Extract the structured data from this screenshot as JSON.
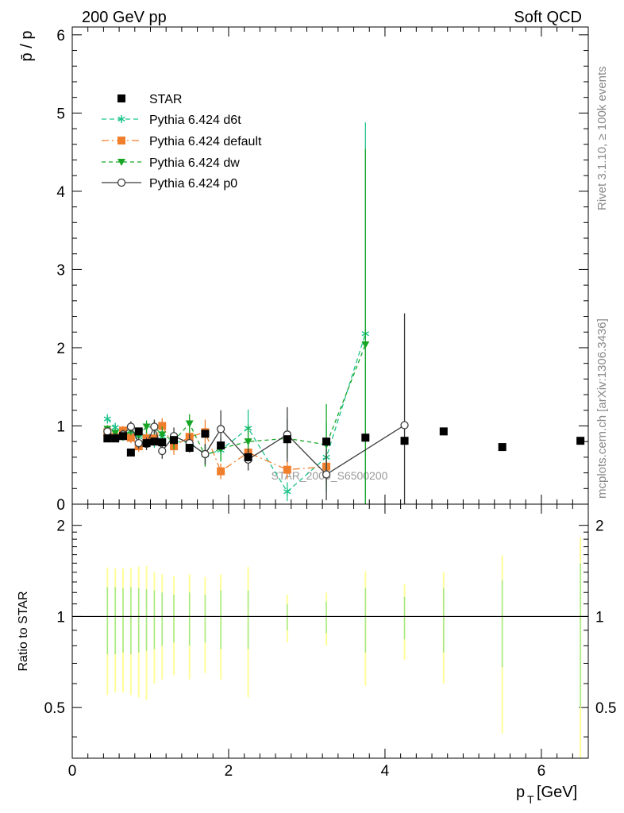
{
  "header": {
    "left": "200 GeV pp",
    "right": "Soft QCD"
  },
  "side_text": {
    "rivet": "Rivet 3.1.10, ≥ 100k events",
    "mcplots": "mcplots.cern.ch [arXiv:1306.3436]"
  },
  "watermark": "STAR_2006_S6500200",
  "chart_data": [
    {
      "type": "scatter",
      "panel": "main",
      "ylabel": "p̄ / p",
      "ylim": [
        0,
        6.1
      ],
      "xlim": [
        0,
        6.6
      ],
      "yticks": [
        0,
        1,
        2,
        3,
        4,
        5,
        6
      ],
      "tick_labels": [
        "0",
        "1",
        "2",
        "3",
        "4",
        "5",
        "6"
      ],
      "legend_position": "top-left",
      "series": [
        {
          "name": "STAR",
          "color": "#000000",
          "marker": "square",
          "x": [
            0.45,
            0.55,
            0.65,
            0.75,
            0.85,
            0.95,
            1.05,
            1.15,
            1.3,
            1.5,
            1.7,
            1.9,
            2.25,
            2.75,
            3.25,
            3.75,
            4.25,
            4.75,
            5.5,
            6.5
          ],
          "y": [
            0.84,
            0.84,
            0.87,
            0.66,
            0.93,
            0.78,
            0.8,
            0.79,
            0.82,
            0.72,
            0.9,
            0.75,
            0.6,
            0.83,
            0.8,
            0.85,
            0.81,
            0.93,
            0.73,
            0.81
          ]
        },
        {
          "name": "Pythia 6.424 d6t",
          "color": "#1ec38a",
          "marker": "star",
          "dash": "6,4",
          "x": [
            0.45,
            0.55,
            0.65,
            0.75,
            0.85,
            0.95,
            1.05,
            1.15,
            1.3,
            1.5,
            1.7,
            1.9,
            2.25,
            2.75,
            3.25,
            3.75
          ],
          "y": [
            1.09,
            0.98,
            0.91,
            0.9,
            0.86,
            0.87,
            0.8,
            0.86,
            0.8,
            0.79,
            0.63,
            0.69,
            0.97,
            0.16,
            0.6,
            2.18
          ],
          "err": [
            0.06,
            0.06,
            0.06,
            0.06,
            0.07,
            0.07,
            0.08,
            0.09,
            0.1,
            0.12,
            0.14,
            0.15,
            0.24,
            0.12,
            0.45,
            2.7
          ]
        },
        {
          "name": "Pythia 6.424 default",
          "color": "#f07f2d",
          "marker": "square",
          "dash": "9,4,2,4",
          "x": [
            0.45,
            0.55,
            0.65,
            0.75,
            0.85,
            0.95,
            1.05,
            1.15,
            1.3,
            1.5,
            1.7,
            1.9,
            2.25,
            2.75,
            3.25
          ],
          "y": [
            0.92,
            0.86,
            0.94,
            0.85,
            0.74,
            0.84,
            0.84,
            1.0,
            0.74,
            0.86,
            0.92,
            0.42,
            0.66,
            0.44,
            0.48
          ],
          "err": [
            0.05,
            0.05,
            0.06,
            0.07,
            0.07,
            0.08,
            0.09,
            0.1,
            0.11,
            0.13,
            0.16,
            0.1,
            0.15,
            0.12,
            0.18
          ]
        },
        {
          "name": "Pythia 6.424 dw",
          "color": "#17a524",
          "marker": "triangle-down",
          "dash": "5,4",
          "x": [
            0.45,
            0.55,
            0.65,
            0.75,
            0.85,
            0.95,
            1.05,
            1.15,
            1.3,
            1.5,
            1.7,
            1.9,
            2.25,
            2.75,
            3.25,
            3.75
          ],
          "y": [
            0.96,
            0.91,
            0.87,
            0.94,
            0.88,
            0.99,
            0.98,
            0.89,
            0.81,
            1.03,
            0.62,
            0.71,
            0.8,
            0.84,
            0.76,
            2.04
          ],
          "err": [
            0.05,
            0.05,
            0.06,
            0.06,
            0.07,
            0.08,
            0.09,
            0.1,
            0.11,
            0.12,
            0.14,
            0.15,
            0.2,
            0.25,
            0.52,
            2.5
          ]
        },
        {
          "name": "Pythia 6.424 p0",
          "color": "#3b3b3b",
          "marker": "open-circle",
          "dash": "",
          "x": [
            0.45,
            0.55,
            0.65,
            0.75,
            0.85,
            0.95,
            1.05,
            1.15,
            1.3,
            1.5,
            1.7,
            1.9,
            2.25,
            2.75,
            3.25,
            4.25
          ],
          "y": [
            0.93,
            0.85,
            0.89,
            0.99,
            0.78,
            0.77,
            0.99,
            0.68,
            0.87,
            0.78,
            0.64,
            0.96,
            0.57,
            0.89,
            0.38,
            1.01
          ],
          "err": [
            0.05,
            0.05,
            0.06,
            0.07,
            0.07,
            0.08,
            0.09,
            0.1,
            0.11,
            0.12,
            0.13,
            0.24,
            0.14,
            0.35,
            0.33,
            1.43
          ]
        }
      ]
    },
    {
      "type": "scatter",
      "panel": "ratio",
      "xlabel": "p_T [GeV]",
      "ylabel": "Ratio to STAR",
      "ylim": [
        0.34,
        2.35
      ],
      "ytick_labels": [
        "0.5",
        "1",
        "2"
      ],
      "yticks": [
        0.5,
        1,
        2
      ],
      "xticks": [
        0,
        2,
        4,
        6
      ],
      "xtick_labels": [
        "0",
        "2",
        "4",
        "6"
      ],
      "reference": 1,
      "band_colors": [
        "#ffff99",
        "#a3e88a"
      ],
      "bands": {
        "x": [
          0.45,
          0.55,
          0.65,
          0.75,
          0.85,
          0.95,
          1.05,
          1.15,
          1.3,
          1.5,
          1.7,
          1.9,
          2.25,
          2.75,
          3.25,
          3.75,
          4.25,
          4.75,
          5.5,
          6.5
        ],
        "outer_rel": [
          0.45,
          0.44,
          0.44,
          0.45,
          0.46,
          0.47,
          0.4,
          0.38,
          0.36,
          0.38,
          0.35,
          0.38,
          0.46,
          0.18,
          0.2,
          0.41,
          0.28,
          0.4,
          0.59,
          0.82
        ],
        "inner_rel": [
          0.25,
          0.25,
          0.24,
          0.25,
          0.24,
          0.23,
          0.22,
          0.2,
          0.18,
          0.2,
          0.18,
          0.22,
          0.22,
          0.1,
          0.12,
          0.24,
          0.16,
          0.24,
          0.32,
          0.5
        ]
      }
    }
  ]
}
